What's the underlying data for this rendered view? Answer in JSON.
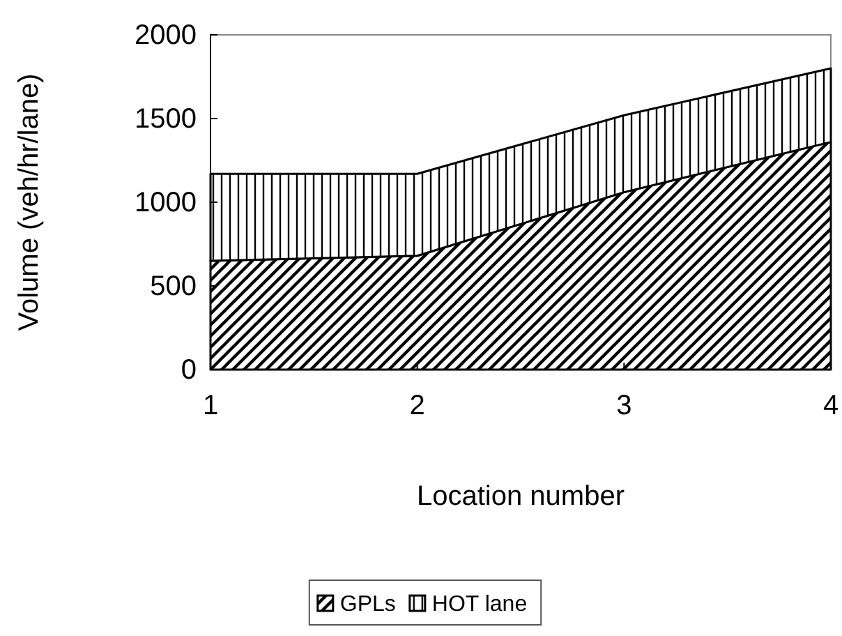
{
  "chart_data": {
    "type": "area",
    "stacked": true,
    "xlabel": "Location number",
    "ylabel": "Volume (veh/hr/lane)",
    "x": [
      1,
      2,
      3,
      4
    ],
    "xlim": [
      1,
      4
    ],
    "xticks": [
      1,
      2,
      3,
      4
    ],
    "ylim": [
      0,
      2000
    ],
    "yticks": [
      0,
      500,
      1000,
      1500,
      2000
    ],
    "legend": "bottom",
    "series": [
      {
        "name": "GPLs",
        "color": "#000000",
        "values": [
          650,
          680,
          1060,
          1360
        ]
      },
      {
        "name": "HOT lane",
        "color": "#000000",
        "values": [
          520,
          490,
          460,
          440
        ]
      }
    ]
  }
}
